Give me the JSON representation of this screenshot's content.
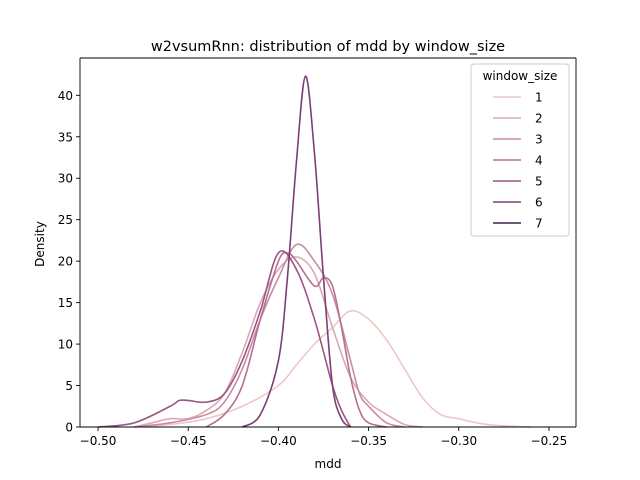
{
  "chart_data": {
    "type": "line",
    "title": "w2vsumRnn: distribution of mdd by window_size",
    "xlabel": "mdd",
    "ylabel": "Density",
    "xlim": [
      -0.51,
      -0.235
    ],
    "ylim": [
      0,
      44.5
    ],
    "xticks": [
      -0.5,
      -0.45,
      -0.4,
      -0.35,
      -0.3,
      -0.25
    ],
    "xtick_labels": [
      "−0.50",
      "−0.45",
      "−0.40",
      "−0.35",
      "−0.30",
      "−0.25"
    ],
    "yticks": [
      0,
      5,
      10,
      15,
      20,
      25,
      30,
      35,
      40
    ],
    "ytick_labels": [
      "0",
      "5",
      "10",
      "15",
      "20",
      "25",
      "30",
      "35",
      "40"
    ],
    "grid": false,
    "legend": {
      "title": "window_size",
      "placement": "top-right"
    },
    "series": [
      {
        "name": "1",
        "color": "#ecc9c5",
        "points": [
          [
            -0.48,
            0
          ],
          [
            -0.46,
            0.3
          ],
          [
            -0.44,
            1.0
          ],
          [
            -0.42,
            2.5
          ],
          [
            -0.4,
            5
          ],
          [
            -0.39,
            7.5
          ],
          [
            -0.38,
            10
          ],
          [
            -0.37,
            12
          ],
          [
            -0.36,
            14
          ],
          [
            -0.35,
            13
          ],
          [
            -0.34,
            10.5
          ],
          [
            -0.33,
            7
          ],
          [
            -0.32,
            3.5
          ],
          [
            -0.31,
            1.5
          ],
          [
            -0.3,
            1.0
          ],
          [
            -0.29,
            0.5
          ],
          [
            -0.28,
            0.2
          ],
          [
            -0.26,
            0
          ]
        ]
      },
      {
        "name": "2",
        "color": "#dba8b2",
        "points": [
          [
            -0.48,
            0
          ],
          [
            -0.47,
            0.5
          ],
          [
            -0.46,
            1.0
          ],
          [
            -0.45,
            1.0
          ],
          [
            -0.44,
            2.0
          ],
          [
            -0.43,
            4.0
          ],
          [
            -0.42,
            9.0
          ],
          [
            -0.41,
            15
          ],
          [
            -0.4,
            19
          ],
          [
            -0.39,
            20.5
          ],
          [
            -0.38,
            18.5
          ],
          [
            -0.37,
            12
          ],
          [
            -0.36,
            6
          ],
          [
            -0.35,
            3.0
          ],
          [
            -0.34,
            1.5
          ],
          [
            -0.33,
            0.3
          ],
          [
            -0.32,
            0
          ]
        ]
      },
      {
        "name": "3",
        "color": "#c98ba3",
        "points": [
          [
            -0.48,
            0
          ],
          [
            -0.46,
            0.5
          ],
          [
            -0.44,
            1.5
          ],
          [
            -0.43,
            3.0
          ],
          [
            -0.42,
            7.0
          ],
          [
            -0.41,
            13
          ],
          [
            -0.4,
            18
          ],
          [
            -0.39,
            22
          ],
          [
            -0.38,
            20
          ],
          [
            -0.37,
            16
          ],
          [
            -0.36,
            8
          ],
          [
            -0.355,
            4
          ],
          [
            -0.35,
            2.5
          ],
          [
            -0.34,
            0.5
          ],
          [
            -0.33,
            0
          ]
        ]
      },
      {
        "name": "4",
        "color": "#b57092",
        "points": [
          [
            -0.44,
            0
          ],
          [
            -0.43,
            1.5
          ],
          [
            -0.42,
            5
          ],
          [
            -0.41,
            13
          ],
          [
            -0.4,
            20
          ],
          [
            -0.395,
            21
          ],
          [
            -0.39,
            20
          ],
          [
            -0.38,
            17
          ],
          [
            -0.375,
            18
          ],
          [
            -0.37,
            17
          ],
          [
            -0.365,
            12
          ],
          [
            -0.36,
            6
          ],
          [
            -0.355,
            2
          ],
          [
            -0.35,
            0.5
          ],
          [
            -0.34,
            0
          ]
        ]
      },
      {
        "name": "5",
        "color": "#9a5585",
        "points": [
          [
            -0.5,
            0
          ],
          [
            -0.48,
            0.5
          ],
          [
            -0.46,
            2.5
          ],
          [
            -0.455,
            3.2
          ],
          [
            -0.45,
            3.2
          ],
          [
            -0.44,
            3.0
          ],
          [
            -0.43,
            4
          ],
          [
            -0.42,
            8
          ],
          [
            -0.41,
            14
          ],
          [
            -0.4,
            21
          ],
          [
            -0.39,
            19
          ],
          [
            -0.38,
            13
          ],
          [
            -0.37,
            5
          ],
          [
            -0.365,
            2
          ],
          [
            -0.36,
            0
          ]
        ]
      },
      {
        "name": "6",
        "color": "#7b3f76",
        "points": [
          [
            -0.42,
            0
          ],
          [
            -0.41,
            1.5
          ],
          [
            -0.4,
            8
          ],
          [
            -0.395,
            18
          ],
          [
            -0.39,
            32
          ],
          [
            -0.385,
            42.3
          ],
          [
            -0.38,
            33
          ],
          [
            -0.375,
            18
          ],
          [
            -0.37,
            5
          ],
          [
            -0.365,
            1
          ],
          [
            -0.36,
            0
          ]
        ]
      },
      {
        "name": "7",
        "color": "#3c1f4f",
        "points": []
      }
    ]
  }
}
